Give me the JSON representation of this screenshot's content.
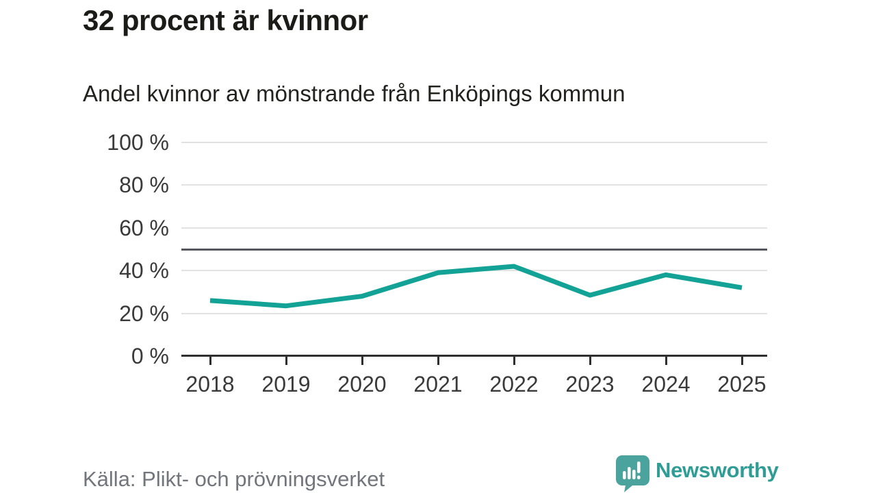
{
  "chart": {
    "title": "32 procent är kvinnor",
    "subtitle": "Andel kvinnor av mönstrande från Enköpings kommun",
    "source": "Källa: Plikt- och prövningsverket"
  },
  "brand": {
    "name": "Newsworthy",
    "logo_icon": "bar-chart-exclamation-speech-bubble-icon",
    "mark_color": "#4ba39d",
    "text_color": "#2f9d96"
  },
  "chart_data": {
    "type": "line",
    "title": "32 procent är kvinnor",
    "subtitle": "Andel kvinnor av mönstrande från Enköpings kommun",
    "source": "Källa: Plikt- och prövningsverket",
    "series_name": "Andel kvinnor av mönstrande",
    "unit": "%",
    "x": [
      "2018",
      "2019",
      "2020",
      "2021",
      "2022",
      "2023",
      "2024",
      "2025"
    ],
    "values": [
      26,
      23.5,
      28,
      39,
      42,
      28.5,
      38,
      32
    ],
    "ylim": [
      0,
      100
    ],
    "y_ticks": [
      {
        "value": 0,
        "label": "0 %"
      },
      {
        "value": 20,
        "label": "20 %"
      },
      {
        "value": 40,
        "label": "40 %"
      },
      {
        "value": 60,
        "label": "60 %"
      },
      {
        "value": 80,
        "label": "80 %"
      },
      {
        "value": 100,
        "label": "100 %"
      }
    ],
    "reference_line": 50,
    "grid": true,
    "legend_position": "none",
    "line_color": "#12a296",
    "grid_color": "#e2e2e2",
    "reference_line_color": "#56565e",
    "axis_color": "#2f2f2f",
    "label_color": "#3a3a3a"
  }
}
